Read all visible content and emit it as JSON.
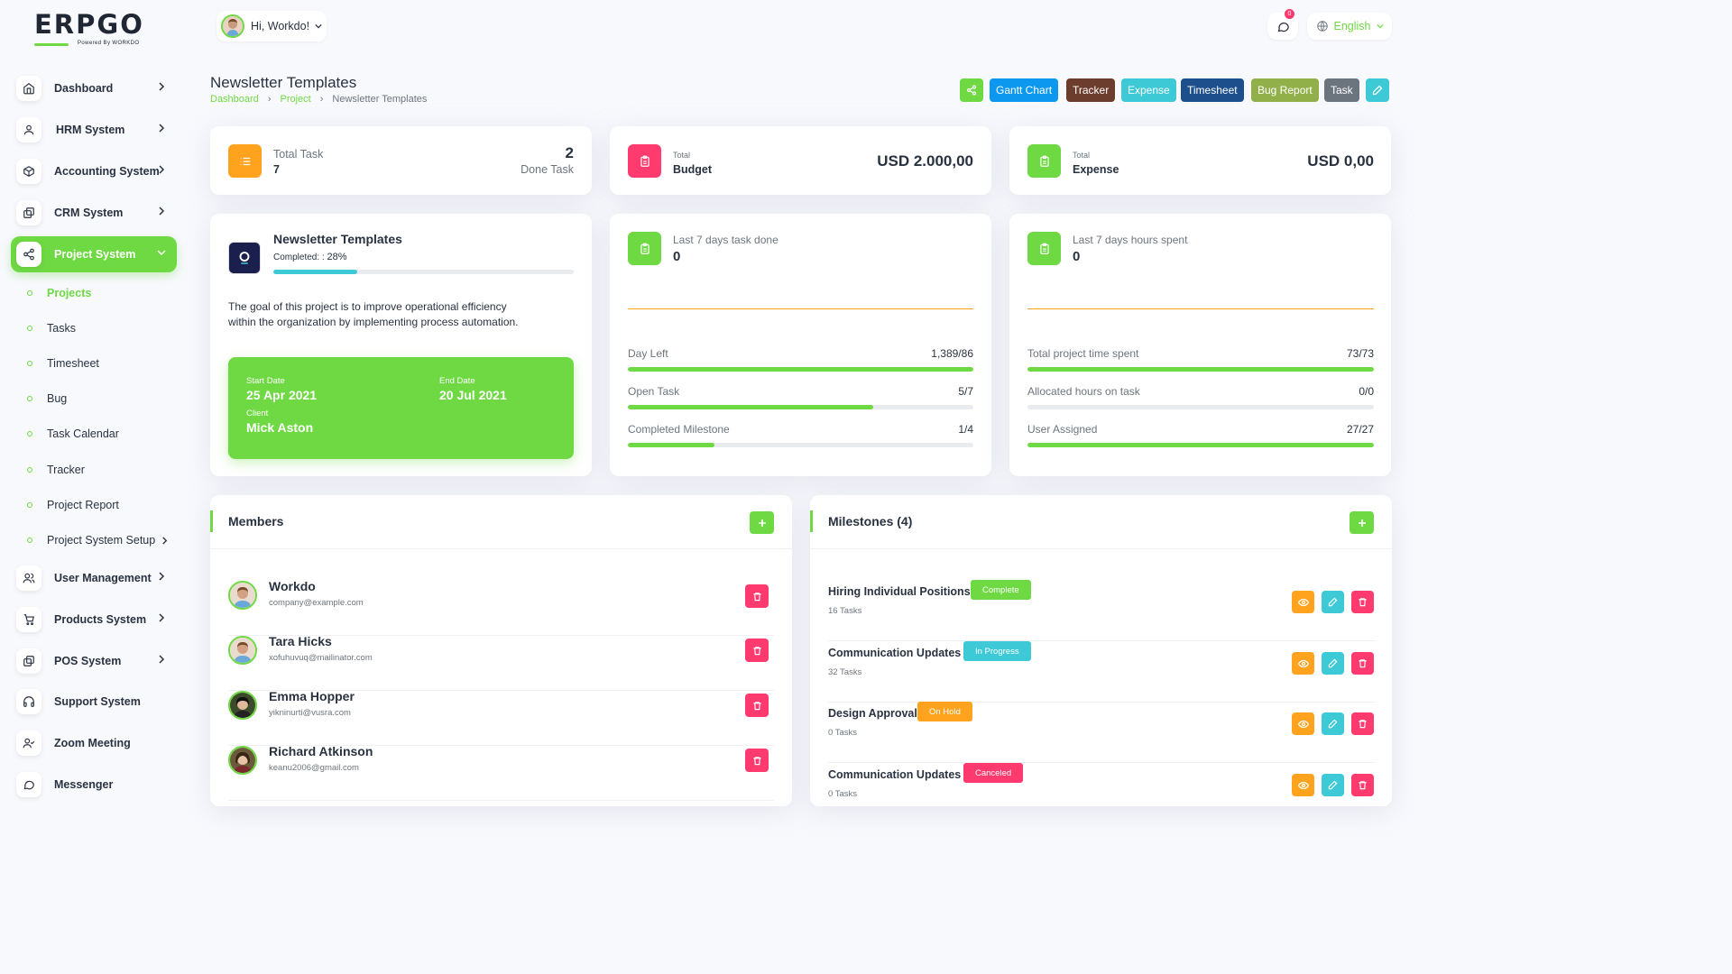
{
  "brand": {
    "logo_text": "ERPGO",
    "powered_by": "Powered By WORKDO"
  },
  "header": {
    "greeting": "Hi, Workdo!",
    "notifications_count": "0",
    "language": "English"
  },
  "sidebar": {
    "items": [
      {
        "label": "Dashboard",
        "icon": "home-icon"
      },
      {
        "label": "HRM System",
        "icon": "user-icon"
      },
      {
        "label": "Accounting System",
        "icon": "box-icon"
      },
      {
        "label": "CRM System",
        "icon": "layers-icon"
      },
      {
        "label": "Project System",
        "icon": "share-icon"
      }
    ],
    "project_sub": [
      "Projects",
      "Tasks",
      "Timesheet",
      "Bug",
      "Task Calendar",
      "Tracker",
      "Project Report",
      "Project System Setup"
    ],
    "items_after": [
      {
        "label": "User Management",
        "icon": "users-icon"
      },
      {
        "label": "Products System",
        "icon": "cart-icon"
      },
      {
        "label": "POS System",
        "icon": "layers-icon"
      },
      {
        "label": "Support System",
        "icon": "headphones-icon"
      },
      {
        "label": "Zoom Meeting",
        "icon": "user-check-icon"
      },
      {
        "label": "Messenger",
        "icon": "message-icon"
      }
    ]
  },
  "page": {
    "title": "Newsletter Templates",
    "breadcrumb": [
      "Dashboard",
      "Project",
      "Newsletter Templates"
    ]
  },
  "toolbar": {
    "buttons": [
      {
        "label": "Gantt Chart",
        "color": "#0d98f0"
      },
      {
        "label": "Tracker",
        "color": "#6c3c2c"
      },
      {
        "label": "Expense",
        "color": "#3ec9d6"
      },
      {
        "label": "Timesheet",
        "color": "#1c4f8c"
      },
      {
        "label": "Bug Report",
        "color": "#92b04a"
      },
      {
        "label": "Task",
        "color": "#6c757d"
      }
    ]
  },
  "stats": {
    "total_task_label": "Total Task",
    "total_task_value": "7",
    "done_task_label": "Done Task",
    "done_task_value": "2",
    "budget_small": "Total",
    "budget_label": "Budget",
    "budget_value": "USD 2.000,00",
    "expense_small": "Total",
    "expense_label": "Expense",
    "expense_value": "USD 0,00"
  },
  "project": {
    "name": "Newsletter Templates",
    "completed_label": "Completed: :",
    "completed_value": "28%",
    "completed_fraction": 0.28,
    "description": "The goal of this project is to improve operational efficiency within the organization by implementing process automation.",
    "start_date_label": "Start Date",
    "start_date": "25 Apr 2021",
    "end_date_label": "End Date",
    "end_date": "20 Jul 2021",
    "client_label": "Client",
    "client": "Mick Aston"
  },
  "task_done": {
    "title": "Last 7 days task done",
    "value": "0",
    "rows": [
      {
        "label": "Day Left",
        "value": "1,389/86",
        "fraction": 1.0
      },
      {
        "label": "Open Task",
        "value": "5/7",
        "fraction": 0.71
      },
      {
        "label": "Completed Milestone",
        "value": "1/4",
        "fraction": 0.25
      }
    ]
  },
  "hours_spent": {
    "title": "Last 7 days hours spent",
    "value": "0",
    "rows": [
      {
        "label": "Total project time spent",
        "value": "73/73",
        "fraction": 1.0
      },
      {
        "label": "Allocated hours on task",
        "value": "0/0",
        "fraction": 0
      },
      {
        "label": "User Assigned",
        "value": "27/27",
        "fraction": 1.0
      }
    ]
  },
  "members": {
    "title": "Members",
    "list": [
      {
        "name": "Workdo",
        "email": "company@example.com"
      },
      {
        "name": "Tara Hicks",
        "email": "xofuhuvuq@mailinator.com"
      },
      {
        "name": "Emma Hopper",
        "email": "yikninurti@vusra.com"
      },
      {
        "name": "Richard Atkinson",
        "email": "keanu2006@gmail.com"
      }
    ]
  },
  "milestones": {
    "title": "Milestones (4)",
    "list": [
      {
        "name": "Hiring Individual Positions",
        "status": "Complete",
        "status_color": "#6fd943",
        "tasks": "16 Tasks"
      },
      {
        "name": "Communication Updates",
        "status": "In Progress",
        "status_color": "#3ec9d6",
        "tasks": "32 Tasks"
      },
      {
        "name": "Design Approval",
        "status": "On Hold",
        "status_color": "#ffa21d",
        "tasks": "0 Tasks"
      },
      {
        "name": "Communication Updates",
        "status": "Canceled",
        "status_color": "#ff3a6e",
        "tasks": "0 Tasks"
      }
    ]
  },
  "colors": {
    "accent": "#6fd943",
    "danger": "#ff3a6e",
    "warning": "#ffa21d",
    "info": "#3ec9d6"
  }
}
